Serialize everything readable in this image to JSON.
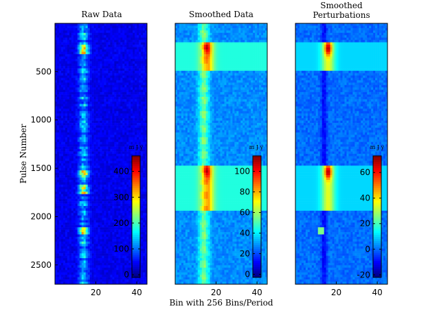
{
  "figure": {
    "xlabel": "Bin with 256 Bins/Period",
    "ylabel": "Pulse Number"
  },
  "chart_data": [
    {
      "type": "heatmap",
      "title": "Raw Data",
      "xlabel": "Bin with 256 Bins/Period",
      "ylabel": "Pulse Number",
      "xlim": [
        0,
        45
      ],
      "ylim": [
        0,
        2700
      ],
      "y_reversed": true,
      "xticks": [
        20,
        40
      ],
      "yticks": [
        500,
        1000,
        1500,
        2000,
        2500
      ],
      "colorbar": {
        "unit": "m J y",
        "ticks": [
          0,
          100,
          200,
          300,
          400
        ],
        "range": [
          -10,
          460
        ]
      },
      "colormap": "jet",
      "features": {
        "band_center_bin": 14,
        "band_width_bins": 3,
        "bright_pulses": [
          250,
          290,
          1550,
          1720,
          2140
        ]
      }
    },
    {
      "type": "heatmap",
      "title": "Smoothed Data",
      "xlabel": "Bin with 256 Bins/Period",
      "xlim": [
        0,
        45
      ],
      "ylim": [
        0,
        2700
      ],
      "y_reversed": true,
      "xticks": [
        20,
        40
      ],
      "colorbar": {
        "unit": "m J y",
        "ticks": [
          0,
          20,
          40,
          60,
          80,
          100
        ],
        "range": [
          -3,
          115
        ]
      },
      "colormap": "jet",
      "features": {
        "band_center_bin": 14,
        "band_width_bins": 4,
        "band_level": 45,
        "hotspots": [
          {
            "y_range": [
              200,
              500
            ],
            "peak": 110
          },
          {
            "y_range": [
              1480,
              1950
            ],
            "peak": 105
          }
        ]
      }
    },
    {
      "type": "heatmap",
      "title": "Smoothed Perturbations",
      "xlabel": "Bin with 256 Bins/Period",
      "xlim": [
        0,
        45
      ],
      "ylim": [
        0,
        2700
      ],
      "y_reversed": true,
      "xticks": [
        20,
        40
      ],
      "colorbar": {
        "unit": "m J y",
        "ticks": [
          -20,
          0,
          20,
          40,
          60
        ],
        "range": [
          -22,
          73
        ]
      },
      "colormap": "jet",
      "features": {
        "band_center_bin": 14,
        "band_level": -5,
        "hotspots": [
          {
            "y_range": [
              200,
              500
            ],
            "peak": 70
          },
          {
            "y_range": [
              1480,
              1950
            ],
            "peak": 68
          }
        ]
      }
    }
  ]
}
